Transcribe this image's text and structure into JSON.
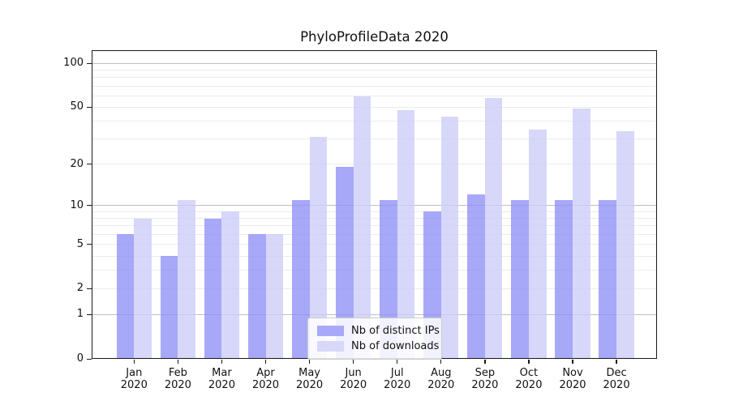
{
  "title": "PhyloProfileData 2020",
  "colors": {
    "distinct_ips_bar": "#a9a9f9",
    "downloads_bar": "#d8d8fa",
    "major_gridline": "#bfbfbf",
    "minor_gridline": "#ebebeb",
    "axis": "#1a1a1a"
  },
  "chart_data": {
    "type": "bar",
    "title": "PhyloProfileData 2020",
    "xlabel": "",
    "ylabel": "",
    "y_scale": "log1p",
    "y_tick_labels": [
      "0",
      "1",
      "2",
      "5",
      "10",
      "20",
      "50",
      "100"
    ],
    "y_tick_values": [
      0,
      1,
      2,
      5,
      10,
      20,
      50,
      100
    ],
    "ylim": [
      0,
      123
    ],
    "grid_major_values": [
      1,
      10,
      100
    ],
    "grid_minor_values": [
      2,
      3,
      4,
      6,
      7,
      8,
      9,
      5,
      20,
      30,
      40,
      50,
      60,
      70,
      80,
      90
    ],
    "categories": [
      "Jan 2020",
      "Feb 2020",
      "Mar 2020",
      "Apr 2020",
      "May 2020",
      "Jun 2020",
      "Jul 2020",
      "Aug 2020",
      "Sep 2020",
      "Oct 2020",
      "Nov 2020",
      "Dec 2020"
    ],
    "x_tick_labels": [
      [
        "Jan",
        "2020"
      ],
      [
        "Feb",
        "2020"
      ],
      [
        "Mar",
        "2020"
      ],
      [
        "Apr",
        "2020"
      ],
      [
        "May",
        "2020"
      ],
      [
        "Jun",
        "2020"
      ],
      [
        "Jul",
        "2020"
      ],
      [
        "Aug",
        "2020"
      ],
      [
        "Sep",
        "2020"
      ],
      [
        "Oct",
        "2020"
      ],
      [
        "Nov",
        "2020"
      ],
      [
        "Dec",
        "2020"
      ]
    ],
    "series": [
      {
        "name": "Nb of distinct IPs",
        "color": "#a9a9f9",
        "fill_rgba": "rgba(140,140,247,0.76)",
        "values": [
          6,
          4,
          8,
          6,
          11,
          19,
          11,
          9,
          12,
          11,
          11,
          11
        ]
      },
      {
        "name": "Nb of downloads",
        "color": "#d8d8fa",
        "fill_rgba": "rgba(205,205,249,0.80)",
        "values": [
          8,
          11,
          9,
          6,
          31,
          59,
          48,
          43,
          58,
          35,
          49,
          34
        ]
      }
    ],
    "legend": {
      "position": "lower center",
      "entries": [
        "Nb of distinct IPs",
        "Nb of downloads"
      ]
    }
  }
}
